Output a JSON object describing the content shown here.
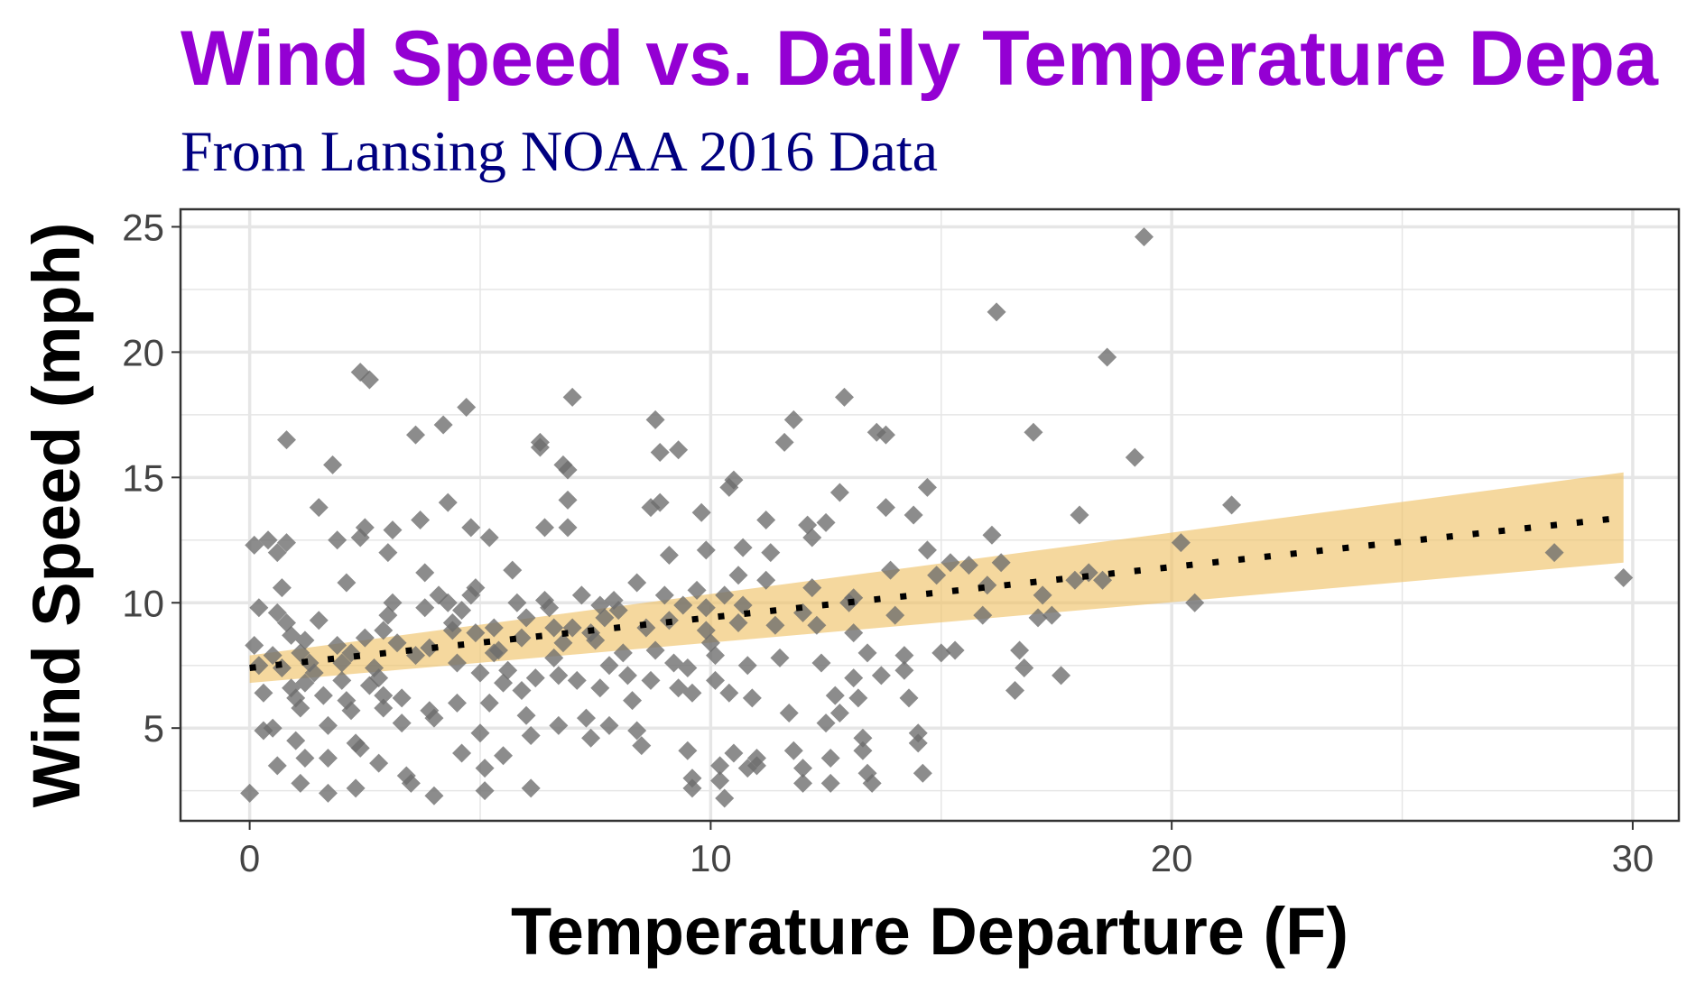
{
  "chart_data": {
    "type": "scatter",
    "title": "Wind Speed vs. Daily Temperature Depa",
    "subtitle": "From Lansing NOAA 2016 Data",
    "xlabel": "Temperature Departure (F)",
    "ylabel": "Wind Speed (mph)",
    "xlim": [
      -1.5,
      31
    ],
    "ylim": [
      1.3,
      25.7
    ],
    "x_ticks": [
      0,
      10,
      20,
      30
    ],
    "y_ticks": [
      5,
      10,
      15,
      20,
      25
    ],
    "grid": true,
    "colors": {
      "title": "#9400D3",
      "subtitle": "#000080",
      "points": "#6b6b6b",
      "ribbon": "#F0C36A",
      "trend_line": "#000000",
      "grid": "#e6e6e6",
      "panel_border": "#333333"
    },
    "point_shape": "diamond",
    "trend": {
      "type": "linear",
      "line_style": "dotted",
      "x_range": [
        0,
        29.8
      ],
      "fit_y": [
        7.4,
        13.4
      ],
      "ci_lower": [
        6.8,
        11.6
      ],
      "ci_upper": [
        7.9,
        15.2
      ]
    },
    "points": [
      [
        0,
        2.4
      ],
      [
        0.1,
        12.3
      ],
      [
        0.1,
        8.3
      ],
      [
        0.2,
        7.5
      ],
      [
        0.3,
        6.4
      ],
      [
        0.4,
        12.5
      ],
      [
        0.3,
        4.9
      ],
      [
        0.5,
        5.0
      ],
      [
        0.6,
        12.0
      ],
      [
        0.7,
        10.6
      ],
      [
        0.8,
        12.4
      ],
      [
        0.6,
        9.6
      ],
      [
        0.8,
        9.2
      ],
      [
        0.9,
        8.7
      ],
      [
        0.7,
        7.4
      ],
      [
        0.9,
        6.6
      ],
      [
        1.0,
        6.2
      ],
      [
        1.1,
        5.8
      ],
      [
        1.0,
        4.5
      ],
      [
        0.6,
        3.5
      ],
      [
        1.1,
        2.8
      ],
      [
        0.8,
        16.5
      ],
      [
        1.2,
        3.8
      ],
      [
        1.2,
        8.5
      ],
      [
        1.3,
        7.6
      ],
      [
        1.2,
        6.8
      ],
      [
        1.4,
        7.2
      ],
      [
        1.5,
        13.8
      ],
      [
        1.6,
        6.3
      ],
      [
        1.7,
        5.1
      ],
      [
        1.7,
        3.8
      ],
      [
        1.8,
        15.5
      ],
      [
        1.9,
        12.5
      ],
      [
        1.9,
        8.3
      ],
      [
        2.0,
        7.6
      ],
      [
        2.0,
        6.9
      ],
      [
        2.1,
        10.8
      ],
      [
        2.1,
        6.1
      ],
      [
        2.2,
        5.7
      ],
      [
        2.3,
        4.4
      ],
      [
        2.3,
        2.6
      ],
      [
        1.7,
        2.4
      ],
      [
        2.4,
        19.2
      ],
      [
        2.6,
        18.9
      ],
      [
        2.4,
        12.6
      ],
      [
        2.5,
        13.0
      ],
      [
        2.5,
        8.6
      ],
      [
        2.4,
        4.2
      ],
      [
        2.7,
        7.4
      ],
      [
        2.8,
        7.0
      ],
      [
        2.9,
        6.3
      ],
      [
        2.9,
        5.8
      ],
      [
        2.8,
        3.6
      ],
      [
        3.0,
        12.0
      ],
      [
        3.1,
        12.9
      ],
      [
        3.0,
        9.5
      ],
      [
        3.2,
        8.4
      ],
      [
        3.3,
        6.2
      ],
      [
        3.3,
        5.2
      ],
      [
        3.4,
        3.1
      ],
      [
        3.5,
        2.8
      ],
      [
        3.6,
        16.7
      ],
      [
        3.7,
        13.3
      ],
      [
        3.8,
        9.8
      ],
      [
        3.9,
        8.2
      ],
      [
        3.9,
        5.7
      ],
      [
        4.0,
        5.4
      ],
      [
        4.0,
        2.3
      ],
      [
        4.2,
        17.1
      ],
      [
        4.3,
        14.0
      ],
      [
        4.3,
        10.0
      ],
      [
        4.4,
        9.2
      ],
      [
        4.5,
        7.6
      ],
      [
        4.5,
        6.0
      ],
      [
        4.6,
        4.0
      ],
      [
        4.7,
        17.8
      ],
      [
        4.8,
        13.0
      ],
      [
        4.8,
        10.3
      ],
      [
        4.9,
        8.8
      ],
      [
        5.0,
        7.2
      ],
      [
        5.0,
        4.8
      ],
      [
        5.1,
        3.4
      ],
      [
        5.1,
        2.5
      ],
      [
        5.2,
        12.6
      ],
      [
        5.3,
        9.0
      ],
      [
        5.4,
        8.1
      ],
      [
        5.5,
        6.8
      ],
      [
        5.5,
        3.9
      ],
      [
        5.7,
        11.3
      ],
      [
        5.8,
        10.0
      ],
      [
        5.9,
        8.6
      ],
      [
        5.9,
        6.5
      ],
      [
        6.0,
        5.5
      ],
      [
        6.1,
        4.7
      ],
      [
        6.1,
        2.6
      ],
      [
        6.3,
        16.4
      ],
      [
        6.3,
        16.2
      ],
      [
        6.4,
        13.0
      ],
      [
        6.4,
        10.1
      ],
      [
        6.6,
        9.0
      ],
      [
        6.7,
        7.1
      ],
      [
        6.7,
        5.1
      ],
      [
        6.8,
        15.5
      ],
      [
        6.9,
        15.3
      ],
      [
        6.9,
        14.1
      ],
      [
        6.9,
        13.0
      ],
      [
        7.0,
        18.2
      ],
      [
        7.0,
        9.0
      ],
      [
        7.1,
        6.9
      ],
      [
        7.3,
        5.4
      ],
      [
        7.4,
        4.6
      ],
      [
        7.5,
        8.5
      ],
      [
        7.6,
        6.6
      ],
      [
        7.7,
        9.4
      ],
      [
        7.8,
        5.1
      ],
      [
        7.9,
        10.1
      ],
      [
        8.1,
        8.0
      ],
      [
        8.2,
        7.1
      ],
      [
        8.3,
        6.1
      ],
      [
        8.4,
        4.9
      ],
      [
        8.5,
        4.3
      ],
      [
        8.6,
        9.0
      ],
      [
        8.7,
        13.8
      ],
      [
        8.8,
        17.3
      ],
      [
        8.9,
        16.0
      ],
      [
        8.9,
        14.0
      ],
      [
        9.0,
        10.3
      ],
      [
        9.1,
        9.3
      ],
      [
        9.2,
        7.6
      ],
      [
        9.3,
        6.6
      ],
      [
        9.5,
        4.1
      ],
      [
        9.6,
        3.0
      ],
      [
        9.6,
        2.6
      ],
      [
        9.8,
        13.6
      ],
      [
        9.9,
        12.1
      ],
      [
        9.9,
        9.8
      ],
      [
        10.0,
        8.4
      ],
      [
        10.1,
        7.9
      ],
      [
        10.1,
        6.9
      ],
      [
        10.2,
        3.5
      ],
      [
        10.2,
        2.9
      ],
      [
        10.4,
        14.6
      ],
      [
        10.5,
        14.9
      ],
      [
        10.6,
        11.1
      ],
      [
        10.7,
        9.9
      ],
      [
        10.8,
        7.5
      ],
      [
        10.9,
        6.2
      ],
      [
        11.0,
        3.8
      ],
      [
        11.0,
        3.5
      ],
      [
        11.2,
        13.3
      ],
      [
        11.3,
        12.0
      ],
      [
        11.4,
        9.1
      ],
      [
        11.5,
        7.8
      ],
      [
        11.7,
        5.6
      ],
      [
        11.8,
        4.1
      ],
      [
        12.0,
        3.4
      ],
      [
        12.0,
        2.8
      ],
      [
        12.1,
        13.1
      ],
      [
        12.2,
        10.6
      ],
      [
        12.3,
        9.1
      ],
      [
        12.4,
        7.6
      ],
      [
        12.5,
        5.2
      ],
      [
        12.6,
        2.8
      ],
      [
        12.8,
        14.4
      ],
      [
        13.0,
        10.0
      ],
      [
        13.1,
        8.8
      ],
      [
        13.1,
        7.0
      ],
      [
        13.2,
        6.2
      ],
      [
        13.3,
        4.1
      ],
      [
        13.4,
        3.2
      ],
      [
        13.5,
        2.8
      ],
      [
        13.6,
        16.8
      ],
      [
        13.8,
        13.8
      ],
      [
        13.9,
        11.3
      ],
      [
        14.0,
        9.5
      ],
      [
        14.2,
        7.9
      ],
      [
        14.3,
        6.2
      ],
      [
        14.5,
        4.4
      ],
      [
        14.6,
        3.2
      ],
      [
        9.3,
        16.1
      ],
      [
        9.6,
        6.4
      ],
      [
        10.5,
        4.0
      ],
      [
        10.3,
        2.2
      ],
      [
        10.8,
        3.4
      ],
      [
        10.7,
        12.2
      ],
      [
        11.2,
        10.9
      ],
      [
        11.6,
        16.4
      ],
      [
        11.8,
        17.3
      ],
      [
        12.0,
        9.6
      ],
      [
        12.2,
        12.6
      ],
      [
        12.5,
        13.2
      ],
      [
        12.6,
        3.8
      ],
      [
        12.7,
        6.3
      ],
      [
        12.8,
        5.6
      ],
      [
        12.9,
        18.2
      ],
      [
        13.1,
        10.2
      ],
      [
        13.3,
        4.6
      ],
      [
        13.4,
        8.0
      ],
      [
        13.7,
        7.1
      ],
      [
        13.8,
        16.7
      ],
      [
        14.2,
        7.3
      ],
      [
        14.4,
        13.5
      ],
      [
        14.5,
        4.8
      ],
      [
        14.7,
        12.1
      ],
      [
        14.7,
        14.6
      ],
      [
        14.9,
        11.1
      ],
      [
        15.0,
        8.0
      ],
      [
        15.2,
        11.6
      ],
      [
        15.3,
        8.1
      ],
      [
        15.6,
        11.5
      ],
      [
        15.9,
        9.5
      ],
      [
        16.0,
        10.7
      ],
      [
        16.1,
        12.7
      ],
      [
        16.2,
        21.6
      ],
      [
        16.3,
        11.6
      ],
      [
        16.6,
        6.5
      ],
      [
        16.7,
        8.1
      ],
      [
        16.8,
        7.4
      ],
      [
        17.0,
        16.8
      ],
      [
        17.1,
        9.4
      ],
      [
        17.2,
        10.3
      ],
      [
        17.4,
        9.5
      ],
      [
        17.6,
        7.1
      ],
      [
        17.9,
        10.9
      ],
      [
        18.0,
        13.5
      ],
      [
        18.2,
        11.2
      ],
      [
        18.5,
        10.9
      ],
      [
        18.6,
        19.8
      ],
      [
        19.2,
        15.8
      ],
      [
        19.4,
        24.6
      ],
      [
        20.2,
        12.4
      ],
      [
        20.5,
        10.0
      ],
      [
        21.3,
        13.9
      ],
      [
        28.3,
        12.0
      ],
      [
        29.8,
        11.0
      ],
      [
        0.5,
        7.9
      ],
      [
        1.5,
        9.3
      ],
      [
        2.2,
        8.0
      ],
      [
        2.6,
        6.7
      ],
      [
        3.1,
        10.0
      ],
      [
        3.6,
        7.9
      ],
      [
        3.8,
        11.2
      ],
      [
        4.1,
        10.3
      ],
      [
        4.4,
        8.9
      ],
      [
        4.9,
        10.6
      ],
      [
        5.3,
        8.0
      ],
      [
        5.6,
        7.3
      ],
      [
        6.0,
        9.4
      ],
      [
        6.2,
        7.0
      ],
      [
        6.5,
        9.8
      ],
      [
        6.8,
        8.4
      ],
      [
        7.2,
        10.3
      ],
      [
        7.4,
        8.8
      ],
      [
        7.8,
        7.5
      ],
      [
        8.0,
        9.7
      ],
      [
        8.4,
        10.8
      ],
      [
        8.8,
        8.1
      ],
      [
        9.1,
        11.9
      ],
      [
        9.4,
        9.9
      ],
      [
        9.7,
        10.5
      ],
      [
        9.9,
        8.9
      ],
      [
        10.3,
        10.3
      ],
      [
        10.6,
        9.2
      ],
      [
        0.2,
        9.8
      ],
      [
        1.1,
        8.0
      ],
      [
        2.9,
        8.9
      ],
      [
        4.6,
        9.7
      ],
      [
        5.2,
        6.0
      ],
      [
        6.6,
        7.8
      ],
      [
        7.6,
        9.9
      ],
      [
        8.7,
        6.9
      ],
      [
        9.5,
        7.4
      ],
      [
        10.4,
        6.4
      ]
    ]
  }
}
